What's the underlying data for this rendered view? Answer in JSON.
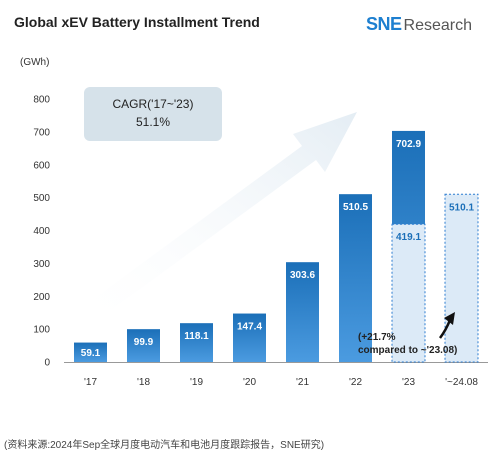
{
  "header": {
    "title": "Global xEV Battery Installment Trend",
    "logo_brand": "SNE",
    "logo_rest": "Research"
  },
  "unit_label": "(GWh)",
  "source": "(资料来源:2024年Sep全球月度电动汽车和电池月度跟踪报告，SNE研究)",
  "colors": {
    "bar_dark": "#1b6fb8",
    "bar_light": "#4b9be0",
    "ghost_fill": "#dceaf7",
    "ghost_border": "#2c7cd0",
    "arrow": "#e4edf4"
  },
  "chart_data": {
    "type": "bar",
    "categories": [
      "'17",
      "'18",
      "'19",
      "'20",
      "'21",
      "'22",
      "'23",
      "'~24.08"
    ],
    "values": [
      59.1,
      99.9,
      118.1,
      147.4,
      303.6,
      510.5,
      702.9,
      510.1
    ],
    "value_labels": [
      "59.1",
      "99.9",
      "118.1",
      "147.4",
      "303.6",
      "510.5",
      "702.9",
      "510.1"
    ],
    "ghost_values": {
      "'23": 419.1,
      "'~24.08": 510.1
    },
    "ghost_labels": {
      "'23": "419.1"
    },
    "ylim": [
      0,
      800
    ],
    "yticks": [
      0,
      100,
      200,
      300,
      400,
      500,
      600,
      700,
      800
    ],
    "grid": false,
    "annotations": {
      "cagr": "CAGR('17~'23)\n51.1%",
      "note": "(+21.7%\ncompared to ~'23.08)"
    }
  }
}
